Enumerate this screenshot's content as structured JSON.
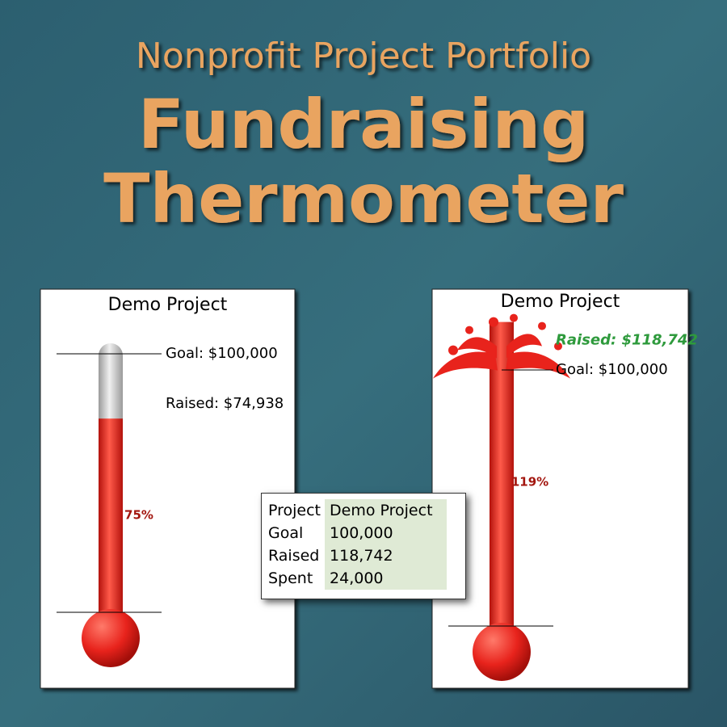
{
  "header": {
    "subtitle": "Nonprofit Project Portfolio",
    "title_line1": "Fundraising",
    "title_line2": "Thermometer"
  },
  "chart_data": [
    {
      "type": "thermometer",
      "title": "Demo Project",
      "ylim": [
        0,
        100000
      ],
      "categories": [
        "Goal",
        "Raised"
      ],
      "values": [
        100000,
        74938
      ],
      "value_labels": [
        "Goal: $100,000",
        "Raised: $74,938"
      ],
      "percent": 75,
      "percent_label": "75%",
      "color": "#e8231c",
      "empty_color": "#c8c8c8"
    },
    {
      "type": "thermometer",
      "title": "Demo Project",
      "ylim": [
        0,
        100000
      ],
      "categories": [
        "Goal",
        "Raised"
      ],
      "values": [
        100000,
        118742
      ],
      "value_labels": [
        "Goal: $100,000",
        "Raised: $118,742"
      ],
      "percent": 119,
      "percent_label": "119%",
      "color": "#e8231c",
      "empty_color": "#c8c8c8"
    }
  ],
  "table": {
    "rows": [
      [
        "Project",
        "Demo Project"
      ],
      [
        "Goal",
        "100,000"
      ],
      [
        "Raised",
        "118,742"
      ],
      [
        "Spent",
        "24,000"
      ]
    ]
  }
}
